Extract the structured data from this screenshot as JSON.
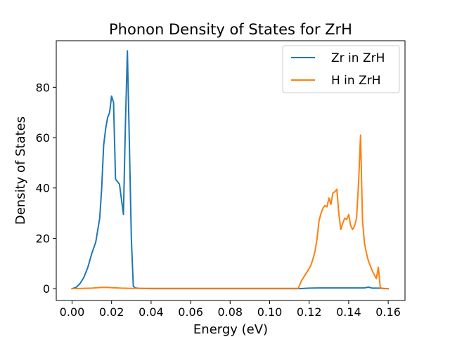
{
  "chart_data": {
    "type": "line",
    "title": "Phonon Density of States for ZrH",
    "xlabel": "Energy (eV)",
    "ylabel": "Density of States",
    "xlim": [
      -0.008,
      0.1685
    ],
    "ylim": [
      -4.7,
      98.5
    ],
    "xticks": [
      0.0,
      0.02,
      0.04,
      0.06,
      0.08,
      0.1,
      0.12,
      0.14,
      0.16
    ],
    "xtick_labels": [
      "0.00",
      "0.02",
      "0.04",
      "0.06",
      "0.08",
      "0.10",
      "0.12",
      "0.14",
      "0.16"
    ],
    "yticks": [
      0,
      20,
      40,
      60,
      80
    ],
    "ytick_labels": [
      "0",
      "20",
      "40",
      "60",
      "80"
    ],
    "grid": false,
    "legend_position": "top-right",
    "series": [
      {
        "name": "Zr in ZrH",
        "color": "#1f77b4",
        "x": [
          0.0,
          0.002,
          0.004,
          0.006,
          0.008,
          0.01,
          0.012,
          0.014,
          0.015,
          0.016,
          0.017,
          0.018,
          0.019,
          0.02,
          0.021,
          0.022,
          0.024,
          0.026,
          0.027,
          0.028,
          0.029,
          0.03,
          0.031,
          0.032,
          0.034,
          0.04,
          0.06,
          0.08,
          0.1,
          0.115,
          0.12,
          0.125,
          0.13,
          0.14,
          0.145,
          0.148,
          0.15,
          0.152,
          0.155,
          0.16
        ],
        "y": [
          0.0,
          0.5,
          2.0,
          4.5,
          8.5,
          14.0,
          18.5,
          28.0,
          40.0,
          57.0,
          63.5,
          68.0,
          70.0,
          76.5,
          74.0,
          43.5,
          41.5,
          29.5,
          65.0,
          94.5,
          58.0,
          20.0,
          1.0,
          0.3,
          0.1,
          0.0,
          0.0,
          0.0,
          0.0,
          0.0,
          0.2,
          0.3,
          0.3,
          0.3,
          0.3,
          0.3,
          0.6,
          0.2,
          0.2,
          0.0
        ]
      },
      {
        "name": "H in ZrH",
        "color": "#ff7f0e",
        "x": [
          0.0,
          0.005,
          0.01,
          0.015,
          0.018,
          0.02,
          0.025,
          0.03,
          0.04,
          0.06,
          0.08,
          0.1,
          0.11,
          0.1145,
          0.116,
          0.118,
          0.12,
          0.121,
          0.122,
          0.123,
          0.124,
          0.125,
          0.126,
          0.127,
          0.128,
          0.129,
          0.13,
          0.131,
          0.132,
          0.133,
          0.134,
          0.135,
          0.136,
          0.137,
          0.138,
          0.139,
          0.14,
          0.141,
          0.142,
          0.143,
          0.144,
          0.145,
          0.146,
          0.147,
          0.148,
          0.149,
          0.15,
          0.151,
          0.152,
          0.153,
          0.154,
          0.155,
          0.156,
          0.157,
          0.158,
          0.159,
          0.16
        ],
        "y": [
          0.0,
          0.1,
          0.2,
          0.5,
          0.5,
          0.4,
          0.2,
          0.1,
          0.1,
          0.1,
          0.1,
          0.1,
          0.1,
          0.1,
          3.0,
          5.5,
          8.0,
          9.5,
          12.0,
          15.0,
          20.0,
          27.0,
          30.0,
          32.0,
          33.0,
          32.5,
          36.0,
          33.5,
          38.0,
          38.5,
          39.5,
          30.0,
          23.5,
          26.0,
          28.0,
          27.5,
          29.5,
          25.0,
          23.5,
          25.0,
          28.0,
          42.0,
          61.0,
          27.0,
          18.0,
          14.0,
          11.0,
          9.0,
          7.0,
          5.5,
          4.0,
          8.5,
          0.5,
          0.0,
          0.0,
          0.0,
          0.0
        ]
      }
    ]
  }
}
